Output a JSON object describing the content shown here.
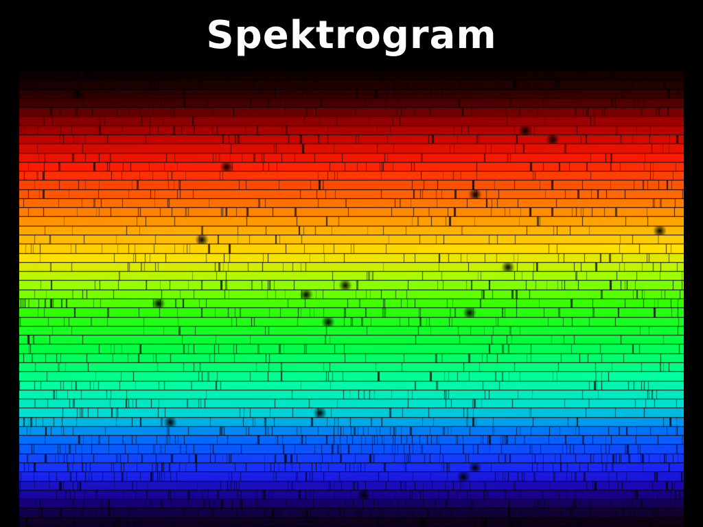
{
  "slide": {
    "title": "Spektrogram"
  },
  "spectrogram": {
    "image_kind": "solar-spectrum-echelle",
    "band_order": "red-top-to-violet-bottom",
    "color_stops": [
      {
        "t": 0.0,
        "color": "#1a0000"
      },
      {
        "t": 0.06,
        "color": "#4a0000"
      },
      {
        "t": 0.13,
        "color": "#b00000"
      },
      {
        "t": 0.2,
        "color": "#ff1a00"
      },
      {
        "t": 0.28,
        "color": "#ff6a00"
      },
      {
        "t": 0.35,
        "color": "#ffb000"
      },
      {
        "t": 0.4,
        "color": "#ffe000"
      },
      {
        "t": 0.46,
        "color": "#9cff00"
      },
      {
        "t": 0.52,
        "color": "#30ff00"
      },
      {
        "t": 0.6,
        "color": "#00ff40"
      },
      {
        "t": 0.68,
        "color": "#00ffa0"
      },
      {
        "t": 0.74,
        "color": "#00e0d0"
      },
      {
        "t": 0.8,
        "color": "#0070ff"
      },
      {
        "t": 0.87,
        "color": "#1a2cff"
      },
      {
        "t": 0.93,
        "color": "#2000c0"
      },
      {
        "t": 1.0,
        "color": "#1a0020"
      }
    ]
  }
}
